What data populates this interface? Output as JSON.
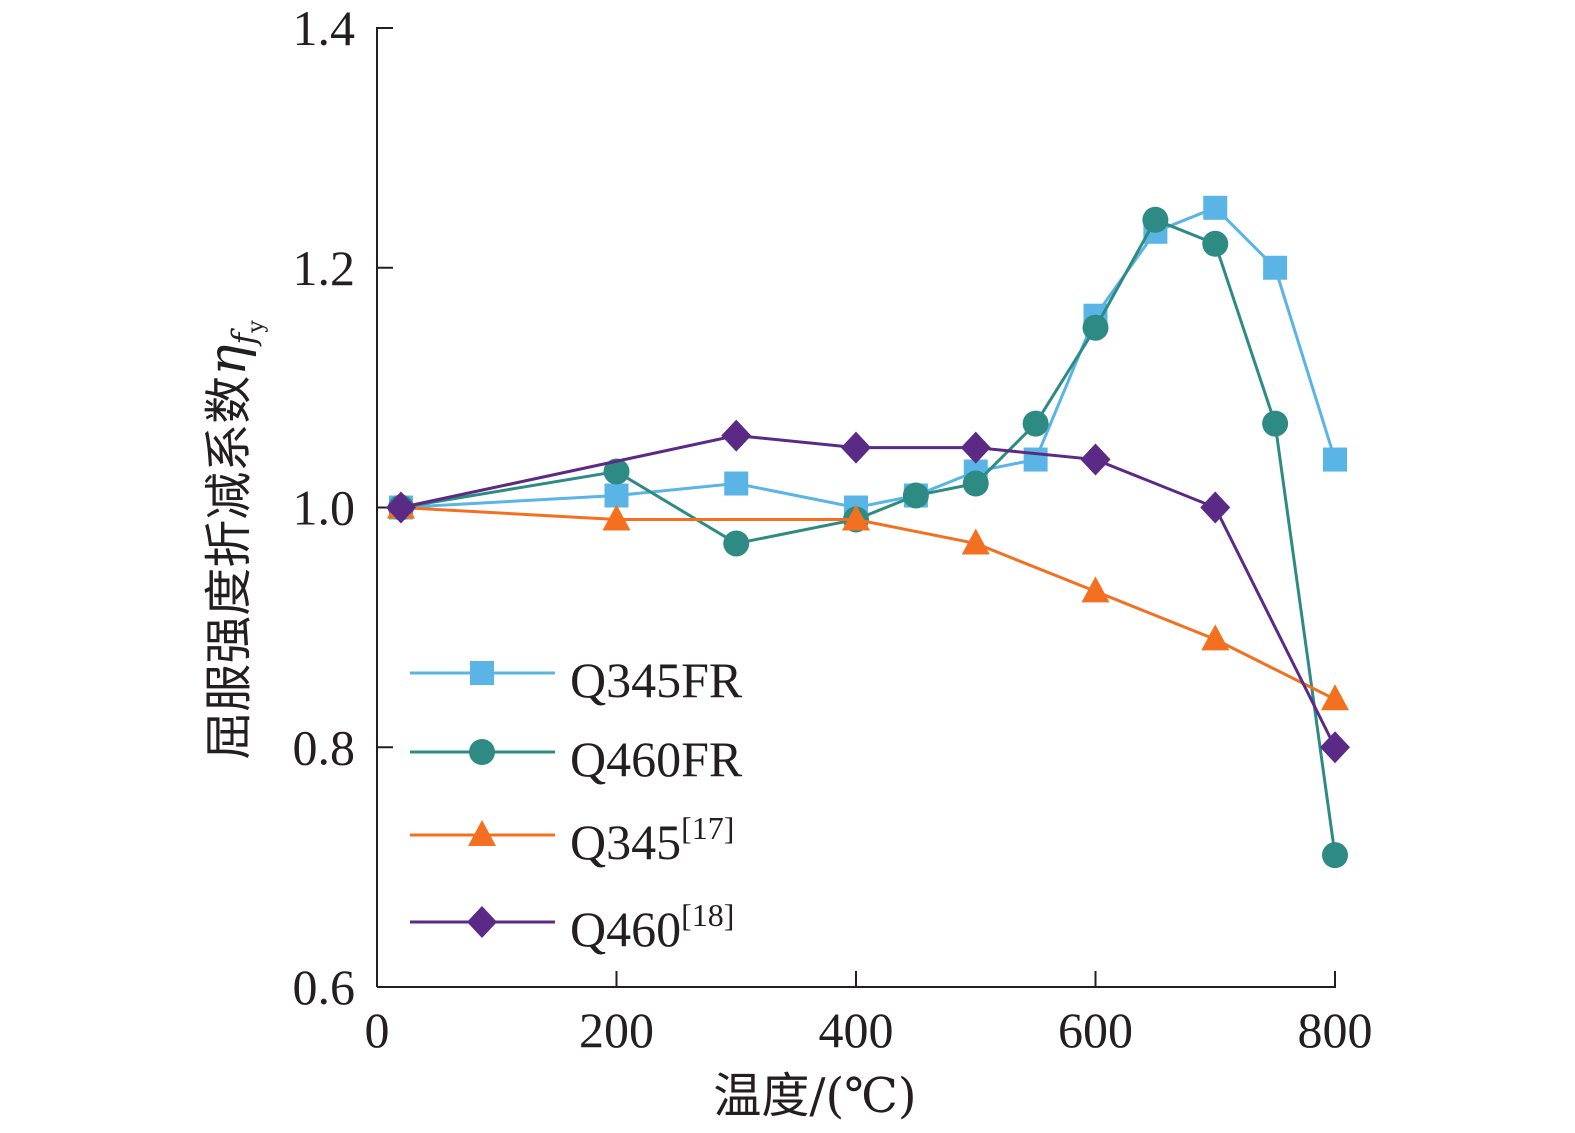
{
  "chart_data": {
    "type": "line",
    "xlabel": "温度/(℃)",
    "ylabel": {
      "text": "屈服强度折减系数",
      "symbol": "η",
      "subscript": "f",
      "subsubscript": "y"
    },
    "xlim": [
      0,
      800
    ],
    "ylim": [
      0.6,
      1.4
    ],
    "xticks": [
      0,
      200,
      400,
      600,
      800
    ],
    "yticks": [
      0.6,
      0.8,
      1.0,
      1.2,
      1.4
    ],
    "xtick_labels": [
      "0",
      "200",
      "400",
      "600",
      "800"
    ],
    "ytick_labels": [
      "0.6",
      "0.8",
      "1.0",
      "1.2",
      "1.4"
    ],
    "grid": false,
    "legend_position": "bottom-left",
    "series": [
      {
        "name": "Q345FR",
        "sup": "",
        "color": "#5ab4e5",
        "marker": "square",
        "x": [
          20,
          200,
          300,
          400,
          450,
          500,
          550,
          600,
          650,
          700,
          750,
          800
        ],
        "y": [
          1.0,
          1.01,
          1.02,
          1.0,
          1.01,
          1.03,
          1.04,
          1.16,
          1.23,
          1.25,
          1.2,
          1.04
        ]
      },
      {
        "name": "Q460FR",
        "sup": "",
        "color": "#2e8b84",
        "marker": "circle",
        "x": [
          20,
          200,
          300,
          400,
          450,
          500,
          550,
          600,
          650,
          700,
          750,
          800
        ],
        "y": [
          1.0,
          1.03,
          0.97,
          0.99,
          1.01,
          1.02,
          1.07,
          1.15,
          1.24,
          1.22,
          1.07,
          0.71
        ]
      },
      {
        "name": "Q345",
        "sup": "[17]",
        "color": "#f37021",
        "marker": "triangle",
        "x": [
          20,
          200,
          400,
          500,
          600,
          700,
          800
        ],
        "y": [
          1.0,
          0.99,
          0.99,
          0.97,
          0.93,
          0.89,
          0.84
        ]
      },
      {
        "name": "Q460",
        "sup": "[18]",
        "color": "#5b2a86",
        "marker": "diamond",
        "x": [
          20,
          300,
          400,
          500,
          600,
          700,
          800
        ],
        "y": [
          1.0,
          1.06,
          1.05,
          1.05,
          1.04,
          1.0,
          0.8
        ]
      }
    ]
  }
}
